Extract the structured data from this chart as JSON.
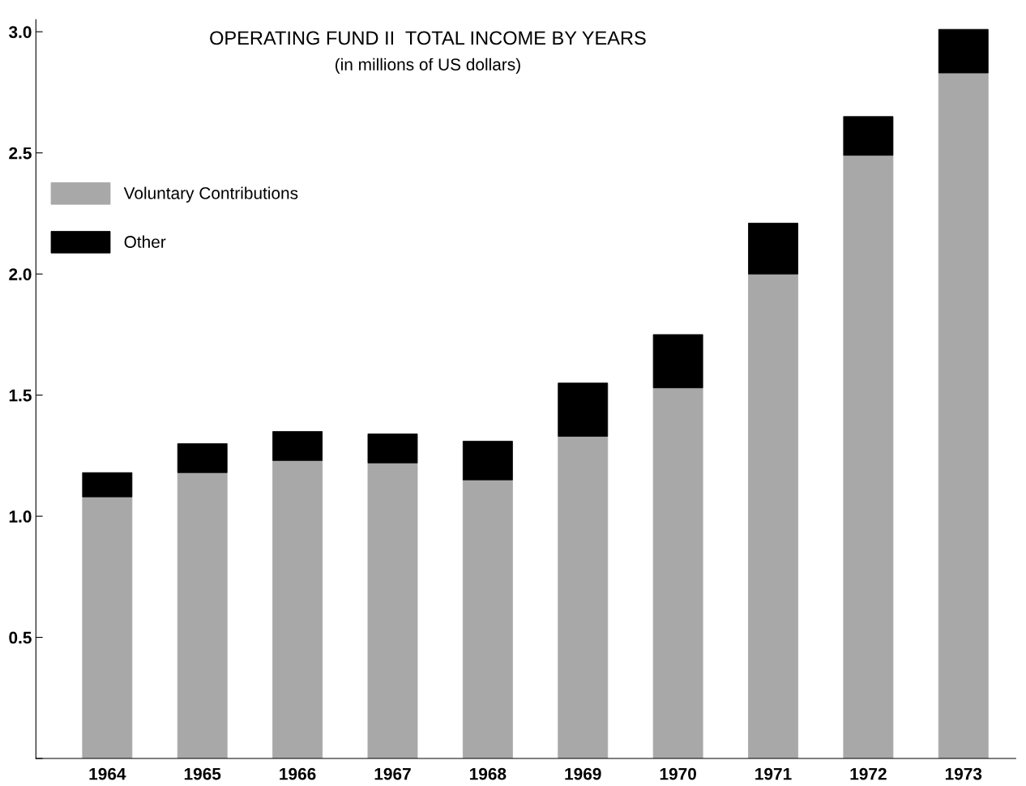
{
  "chart_data": {
    "type": "bar",
    "title": "OPERATING FUND II  TOTAL INCOME BY YEARS",
    "subtitle": "(in millions of US dollars)",
    "categories": [
      "1964",
      "1965",
      "1966",
      "1967",
      "1968",
      "1969",
      "1970",
      "1971",
      "1972",
      "1973"
    ],
    "stacked": true,
    "series": [
      {
        "name": "Voluntary Contributions",
        "color": "#a8a8a8",
        "values": [
          1.08,
          1.18,
          1.23,
          1.22,
          1.15,
          1.33,
          1.53,
          2.0,
          2.49,
          2.83
        ]
      },
      {
        "name": "Other",
        "color": "#000000",
        "values": [
          0.1,
          0.12,
          0.12,
          0.12,
          0.16,
          0.22,
          0.22,
          0.21,
          0.16,
          0.18
        ]
      }
    ],
    "ylim": [
      0,
      3.05
    ],
    "yticks": [
      {
        "value": 0,
        "label": null
      },
      0.5,
      {
        "value": 1,
        "label": "1.0"
      },
      1.5,
      {
        "value": 2,
        "label": "2.0"
      },
      2.5,
      {
        "value": 3,
        "label": "3.0"
      }
    ],
    "grid": false,
    "legend": "top left"
  }
}
